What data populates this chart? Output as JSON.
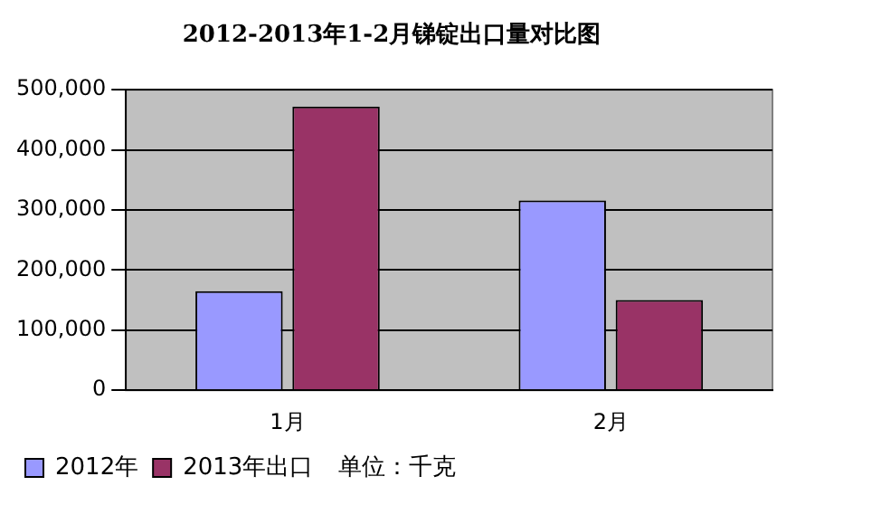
{
  "chart_data": {
    "type": "bar",
    "title": "2012-2013年1-2月锑锭出口量对比图",
    "categories": [
      "1月",
      "2月"
    ],
    "series": [
      {
        "name": "2012年",
        "color": "#9999ff",
        "values": [
          165000,
          316000
        ]
      },
      {
        "name": "2013年出口",
        "color": "#993366",
        "values": [
          472000,
          150000
        ]
      }
    ],
    "ylim": [
      0,
      500000
    ],
    "yticks": [
      {
        "value": 0,
        "label": "0"
      },
      {
        "value": 100000,
        "label": "100,000"
      },
      {
        "value": 200000,
        "label": "200,000"
      },
      {
        "value": 300000,
        "label": "300,000"
      },
      {
        "value": 400000,
        "label": "400,000"
      },
      {
        "value": 500000,
        "label": "500,000"
      }
    ],
    "grid": "y",
    "legend": "bottom",
    "annotations": [
      "单位：千克"
    ]
  }
}
